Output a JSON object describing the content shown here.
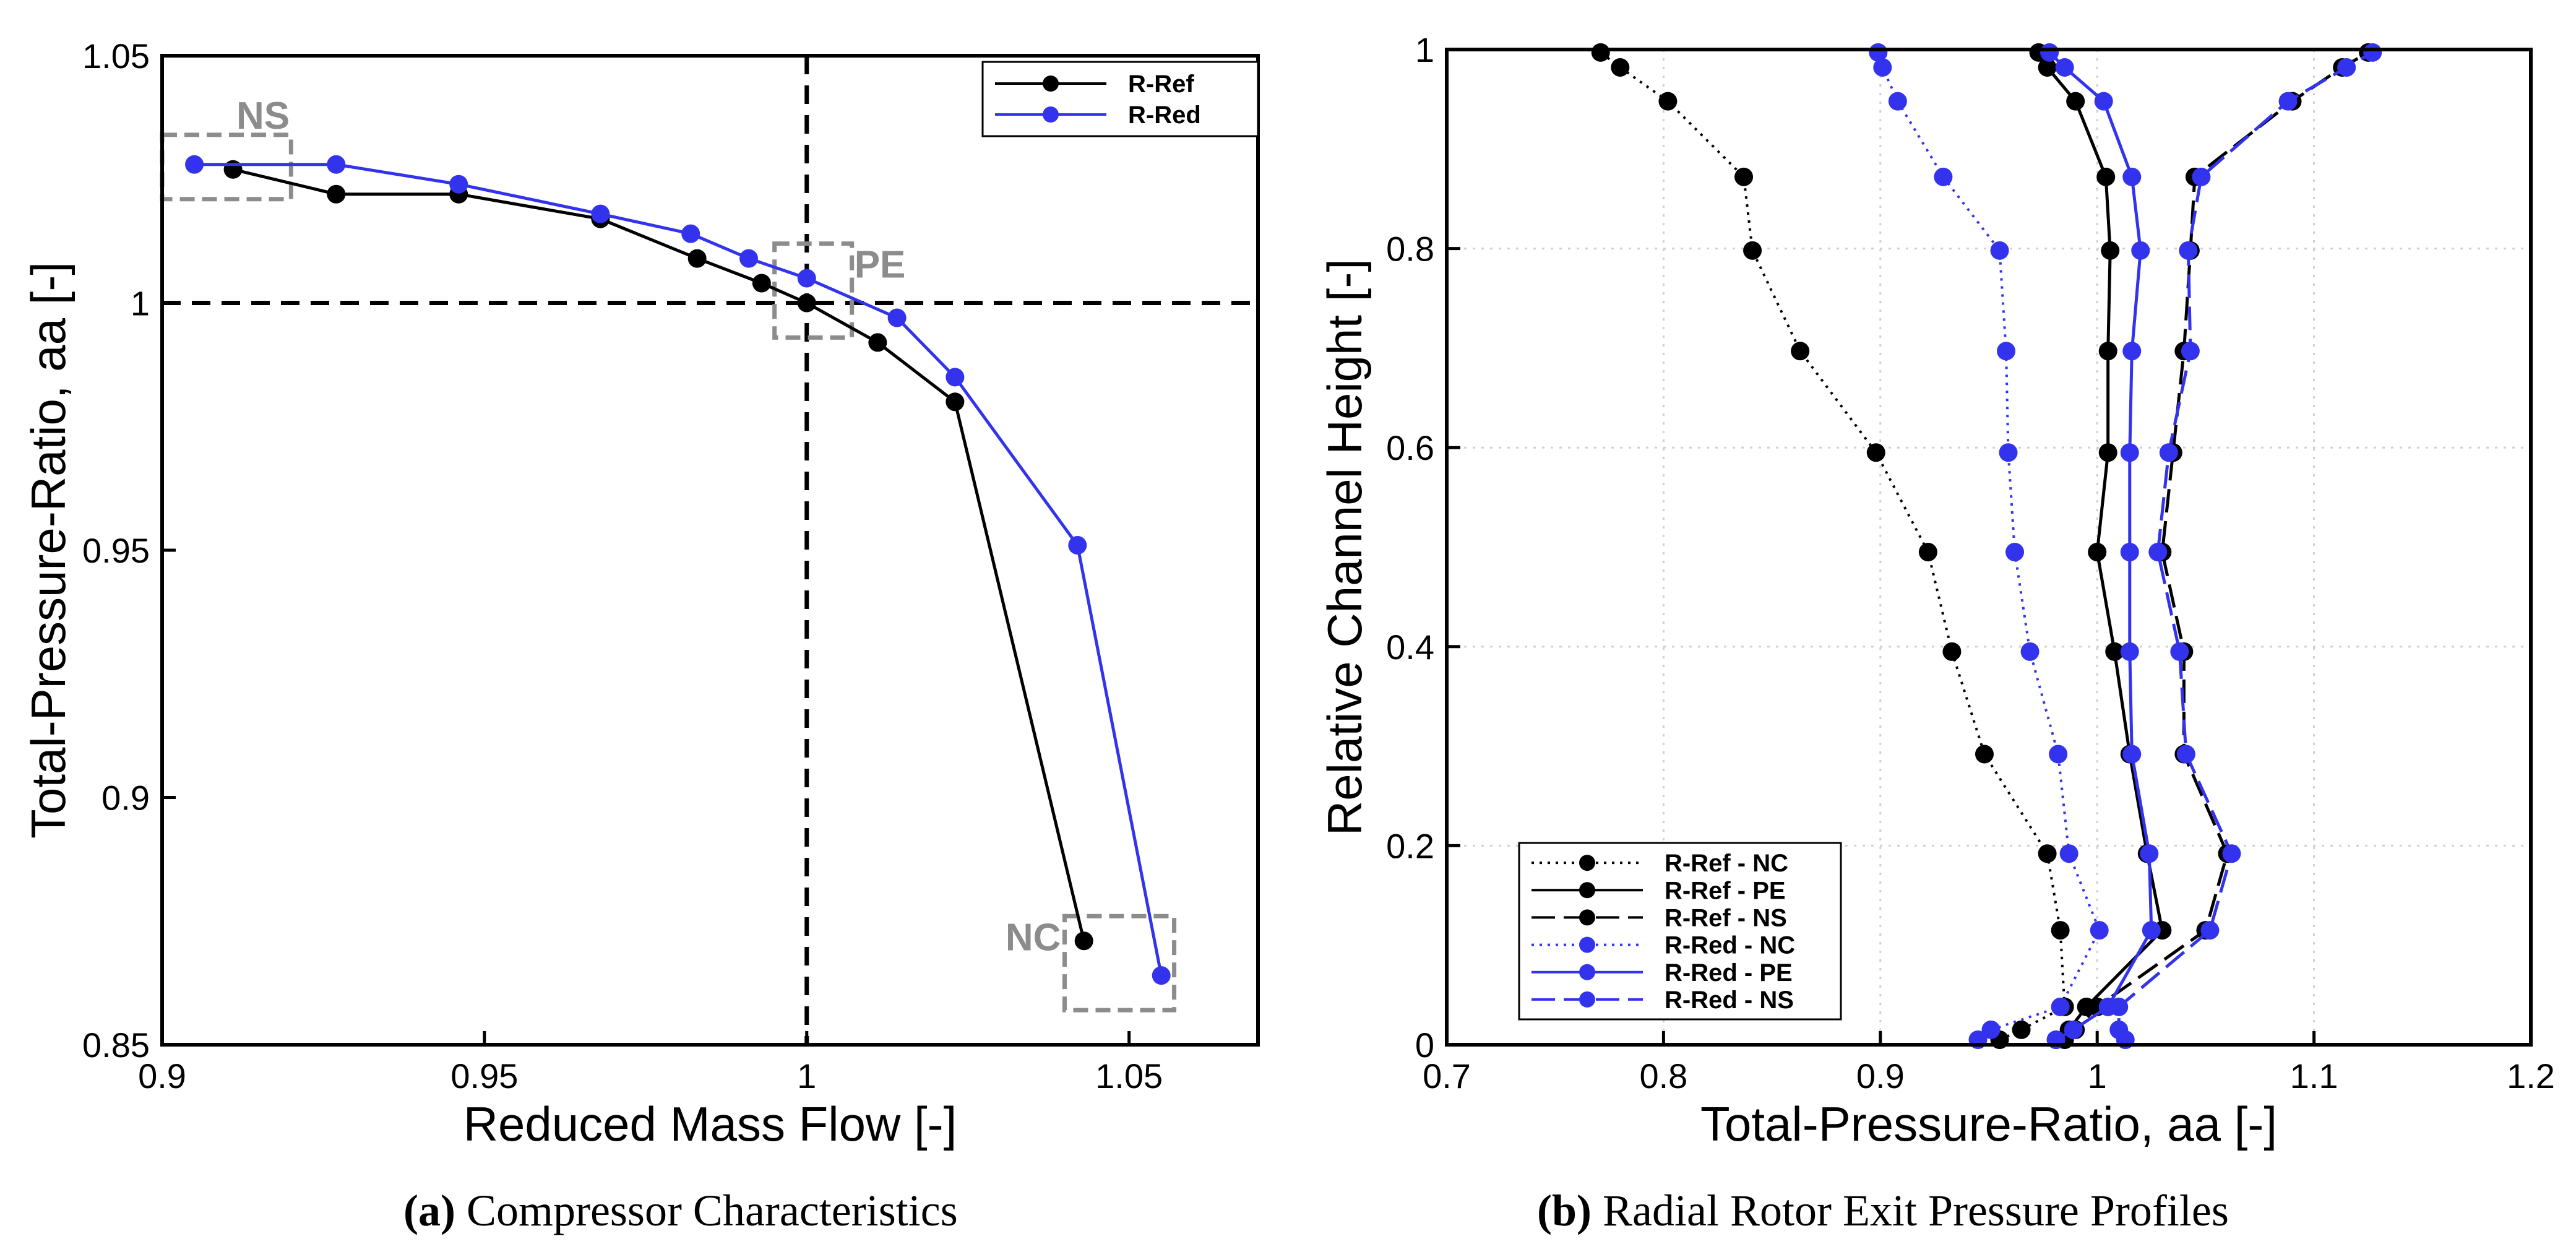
{
  "captions": {
    "a": {
      "letter": "(a)",
      "text": "Compressor Characteristics"
    },
    "b": {
      "letter": "(b)",
      "text": "Radial Rotor Exit Pressure Profiles"
    }
  },
  "chart_data": [
    {
      "id": "a",
      "type": "line",
      "title": "",
      "xlabel": "Reduced Mass Flow [-]",
      "ylabel": "Total-Pressure-Ratio, aa [-]",
      "xlim": [
        0.9,
        1.07
      ],
      "ylim": [
        0.85,
        1.05
      ],
      "xticks": [
        0.9,
        0.95,
        1,
        1.05
      ],
      "xtick_labels": [
        "0.9",
        "0.95",
        "1",
        "1.05"
      ],
      "yticks": [
        0.85,
        0.9,
        0.95,
        1,
        1.05
      ],
      "ytick_labels": [
        "0.85",
        "0.9",
        "0.95",
        "1",
        "1.05"
      ],
      "grid": false,
      "legend": "top-right",
      "reference_lines": {
        "x": 1,
        "y": 1
      },
      "series": [
        {
          "name": "R-Ref",
          "color": "#000000",
          "x": [
            0.911,
            0.927,
            0.946,
            0.968,
            0.983,
            0.993,
            1.0,
            1.011,
            1.023,
            1.043
          ],
          "y": [
            1.027,
            1.022,
            1.022,
            1.017,
            1.009,
            1.004,
            1.0,
            0.992,
            0.98,
            0.871
          ]
        },
        {
          "name": "R-Red",
          "color": "#3333ee",
          "x": [
            0.905,
            0.927,
            0.946,
            0.968,
            0.982,
            0.991,
            1.0,
            1.014,
            1.023,
            1.042,
            1.055
          ],
          "y": [
            1.028,
            1.028,
            1.024,
            1.018,
            1.014,
            1.009,
            1.005,
            0.997,
            0.985,
            0.951,
            0.864
          ]
        }
      ],
      "annotations": [
        {
          "label": "NS",
          "box": {
            "x": [
              0.9,
              0.92
            ],
            "y": [
              1.021,
              1.034
            ]
          }
        },
        {
          "label": "PE",
          "box": {
            "x": [
              0.995,
              1.007
            ],
            "y": [
              0.993,
              1.012
            ]
          }
        },
        {
          "label": "NC",
          "box": {
            "x": [
              1.04,
              1.057
            ],
            "y": [
              0.857,
              0.876
            ]
          }
        }
      ]
    },
    {
      "id": "b",
      "type": "line",
      "title": "",
      "xlabel": "Total-Pressure-Ratio, aa [-]",
      "ylabel": "Relative Channel Height [-]",
      "xlim": [
        0.7,
        1.2
      ],
      "ylim": [
        0,
        1
      ],
      "xticks": [
        0.7,
        0.8,
        0.9,
        1,
        1.1,
        1.2
      ],
      "xtick_labels": [
        "0.7",
        "0.8",
        "0.9",
        "1",
        "1.1",
        "1.2"
      ],
      "yticks": [
        0,
        0.2,
        0.4,
        0.6,
        0.8,
        1
      ],
      "ytick_labels": [
        "0",
        "0.2",
        "0.4",
        "0.6",
        "0.8",
        "1"
      ],
      "grid": true,
      "legend": "bottom-left",
      "series": [
        {
          "name": "R-Ref  - NC",
          "color": "#000000",
          "dash": "dotted",
          "x": [
            0.955,
            0.965,
            0.985,
            0.983,
            0.977,
            0.948,
            0.933,
            0.922,
            0.898,
            0.863,
            0.841,
            0.837,
            0.802,
            0.78,
            0.771
          ],
          "y": [
            0.005,
            0.015,
            0.038,
            0.115,
            0.192,
            0.292,
            0.395,
            0.495,
            0.595,
            0.697,
            0.798,
            0.872,
            0.948,
            0.982,
            0.997
          ]
        },
        {
          "name": "R-Ref  - PE",
          "color": "#000000",
          "dash": "solid",
          "x": [
            0.981,
            0.987,
            0.995,
            1.03,
            1.023,
            1.015,
            1.008,
            1.0,
            1.005,
            1.005,
            1.006,
            1.004,
            0.99,
            0.977,
            0.973
          ],
          "y": [
            0.005,
            0.015,
            0.038,
            0.115,
            0.192,
            0.292,
            0.395,
            0.495,
            0.595,
            0.697,
            0.798,
            0.872,
            0.948,
            0.982,
            0.997
          ]
        },
        {
          "name": "R-Ref  - NS",
          "color": "#000000",
          "dash": "dashed",
          "x": [
            0.985,
            0.99,
            1.0,
            1.05,
            1.06,
            1.04,
            1.04,
            1.03,
            1.035,
            1.04,
            1.043,
            1.045,
            1.09,
            1.113,
            1.125
          ],
          "y": [
            0.005,
            0.015,
            0.038,
            0.115,
            0.192,
            0.292,
            0.395,
            0.495,
            0.595,
            0.697,
            0.798,
            0.872,
            0.948,
            0.982,
            0.997
          ]
        },
        {
          "name": "R-Red - NC",
          "color": "#3333ee",
          "dash": "dotted",
          "x": [
            0.945,
            0.951,
            0.983,
            1.001,
            0.987,
            0.982,
            0.969,
            0.962,
            0.959,
            0.958,
            0.955,
            0.929,
            0.908,
            0.901,
            0.899
          ],
          "y": [
            0.005,
            0.015,
            0.038,
            0.115,
            0.192,
            0.292,
            0.395,
            0.495,
            0.595,
            0.697,
            0.798,
            0.872,
            0.948,
            0.982,
            0.997
          ]
        },
        {
          "name": "R-Red - PE",
          "color": "#3333ee",
          "dash": "solid",
          "x": [
            0.981,
            0.989,
            1.005,
            1.025,
            1.024,
            1.016,
            1.015,
            1.015,
            1.015,
            1.016,
            1.02,
            1.016,
            1.003,
            0.985,
            0.978
          ],
          "y": [
            0.005,
            0.015,
            0.038,
            0.115,
            0.192,
            0.292,
            0.395,
            0.495,
            0.595,
            0.697,
            0.798,
            0.872,
            0.948,
            0.982,
            0.997
          ]
        },
        {
          "name": "R-Red - NS",
          "color": "#3333ee",
          "dash": "dashed",
          "x": [
            1.013,
            1.01,
            1.01,
            1.052,
            1.062,
            1.041,
            1.038,
            1.028,
            1.033,
            1.043,
            1.042,
            1.048,
            1.088,
            1.115,
            1.127
          ],
          "y": [
            0.005,
            0.015,
            0.038,
            0.115,
            0.192,
            0.292,
            0.395,
            0.495,
            0.595,
            0.697,
            0.798,
            0.872,
            0.948,
            0.982,
            0.997
          ]
        }
      ]
    }
  ]
}
